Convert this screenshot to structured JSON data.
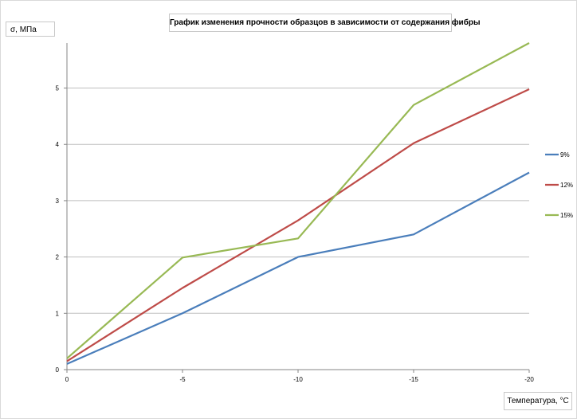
{
  "chart_data": {
    "type": "line",
    "title": "График изменения прочности образцов в зависимости от содержания фибры",
    "ylabel": "σ, МПа",
    "xlabel": "Температура, °С",
    "x": [
      0,
      -5,
      -10,
      -15,
      -20
    ],
    "x_tick_labels": [
      "0",
      "-5",
      "-10",
      "-15",
      "-20"
    ],
    "y_tick_labels": [
      "0",
      "1",
      "2",
      "3",
      "4",
      "5"
    ],
    "ylim": [
      0,
      5.8
    ],
    "grid": true,
    "legend_position": "right",
    "series": [
      {
        "name": "9%",
        "color": "#4a7ebb",
        "values": [
          0.1,
          1.0,
          2.0,
          2.4,
          3.5
        ]
      },
      {
        "name": "12%",
        "color": "#be4b48",
        "values": [
          0.15,
          1.45,
          2.65,
          4.02,
          4.98
        ]
      },
      {
        "name": "15%",
        "color": "#98b954",
        "values": [
          0.2,
          1.99,
          2.33,
          4.7,
          5.8
        ]
      }
    ]
  }
}
